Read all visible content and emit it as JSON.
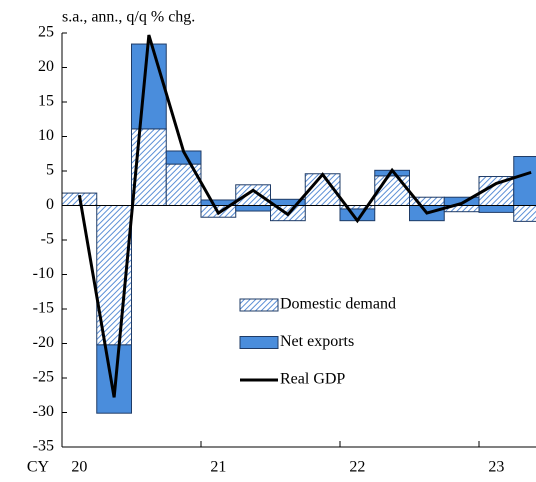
{
  "chart_data": {
    "type": "bar",
    "subtitle": "s.a., ann., q/q % chg.",
    "x_label": "CY",
    "categories": [
      "20",
      null,
      null,
      null,
      "21",
      null,
      null,
      null,
      "22",
      null,
      null,
      null,
      "23",
      null
    ],
    "series": [
      {
        "name": "Domestic demand",
        "color": "#5b8fd6",
        "hatch": true,
        "values": [
          1.8,
          -20.2,
          11.1,
          6.0,
          -1.7,
          3.0,
          -2.2,
          4.6,
          -0.5,
          4.3,
          1.2,
          -0.9,
          4.2,
          -2.3
        ]
      },
      {
        "name": "Net exports",
        "color": "#4a8ddc",
        "hatch": false,
        "values": [
          0,
          -9.9,
          12.3,
          1.9,
          0.8,
          -0.8,
          0.9,
          0,
          -1.7,
          0.8,
          -2.2,
          1.2,
          -1.0,
          7.1
        ]
      },
      {
        "name": "Real GDP",
        "type": "line",
        "color": "#000000",
        "values": [
          1.5,
          -27.8,
          24.7,
          7.8,
          -1.1,
          2.2,
          -1.3,
          4.5,
          -2.2,
          5.1,
          -1.1,
          0.3,
          3.2,
          4.8
        ]
      }
    ],
    "ylim": [
      -35,
      25
    ],
    "yticks": [
      -35,
      -30,
      -25,
      -20,
      -15,
      -10,
      -5,
      0,
      5,
      10,
      15,
      20,
      25
    ]
  }
}
